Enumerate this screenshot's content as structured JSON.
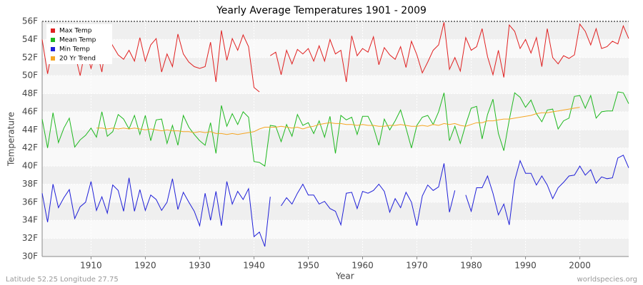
{
  "chart_data": {
    "type": "line",
    "title": "Yearly Average Temperatures 1901 - 2009",
    "x_label": "Year",
    "y_label": "Temperature",
    "footer_left": "Latitude 52.25 Longitude 27.75",
    "footer_right": "worldspecies.org",
    "xlim": [
      1901,
      2009
    ],
    "xticks": [
      1910,
      1920,
      1930,
      1940,
      1950,
      1960,
      1970,
      1980,
      1990,
      2000
    ],
    "ylim": [
      30,
      56
    ],
    "yticks": [
      {
        "value": 30,
        "label": "30F"
      },
      {
        "value": 32,
        "label": "32F"
      },
      {
        "value": 34,
        "label": "34F"
      },
      {
        "value": 36,
        "label": "36F"
      },
      {
        "value": 38,
        "label": "38F"
      },
      {
        "value": 40,
        "label": "40F"
      },
      {
        "value": 42,
        "label": "42F"
      },
      {
        "value": 44,
        "label": "44F"
      },
      {
        "value": 46,
        "label": "46F"
      },
      {
        "value": 48,
        "label": "48F"
      },
      {
        "value": 50,
        "label": "50F"
      },
      {
        "value": 52,
        "label": "52F"
      },
      {
        "value": 54,
        "label": "54F"
      },
      {
        "value": 56,
        "label": "56F"
      }
    ],
    "grid": true,
    "legend": "top-left",
    "x": [
      1901,
      1902,
      1903,
      1904,
      1905,
      1906,
      1907,
      1908,
      1909,
      1910,
      1911,
      1912,
      1913,
      1914,
      1915,
      1916,
      1917,
      1918,
      1919,
      1920,
      1921,
      1922,
      1923,
      1924,
      1925,
      1926,
      1927,
      1928,
      1929,
      1930,
      1931,
      1932,
      1933,
      1934,
      1935,
      1936,
      1937,
      1938,
      1939,
      1940,
      1941,
      1942,
      1943,
      1944,
      1945,
      1946,
      1947,
      1948,
      1949,
      1950,
      1951,
      1952,
      1953,
      1954,
      1955,
      1956,
      1957,
      1958,
      1959,
      1960,
      1961,
      1962,
      1963,
      1964,
      1965,
      1966,
      1967,
      1968,
      1969,
      1970,
      1971,
      1972,
      1973,
      1974,
      1975,
      1976,
      1977,
      1978,
      1979,
      1980,
      1981,
      1982,
      1983,
      1984,
      1985,
      1986,
      1987,
      1988,
      1989,
      1990,
      1991,
      1992,
      1993,
      1994,
      1995,
      1996,
      1997,
      1998,
      1999,
      2000,
      2001,
      2002,
      2003,
      2004,
      2005,
      2006,
      2007,
      2008,
      2009
    ],
    "series": [
      {
        "name": "Max Temp",
        "color": "#e02020",
        "values": [
          54.0,
          50.2,
          53.4,
          52.0,
          51.5,
          53.8,
          52.5,
          50.0,
          53.0,
          50.8,
          52.9,
          50.4,
          54.5,
          53.3,
          52.3,
          51.8,
          52.8,
          51.6,
          54.2,
          51.6,
          53.4,
          54.1,
          50.4,
          52.4,
          51.0,
          54.6,
          52.4,
          51.5,
          51.0,
          50.8,
          51.0,
          53.7,
          49.3,
          55.0,
          51.7,
          54.1,
          52.8,
          54.5,
          53.2,
          48.7,
          48.2,
          null,
          52.2,
          52.6,
          50.1,
          52.8,
          51.3,
          52.9,
          52.4,
          53.0,
          51.6,
          53.3,
          51.6,
          54.0,
          52.4,
          52.8,
          49.3,
          54.4,
          52.2,
          53.0,
          52.6,
          54.3,
          51.2,
          53.1,
          52.3,
          51.8,
          53.2,
          50.9,
          53.8,
          52.3,
          50.3,
          51.5,
          52.8,
          53.4,
          55.9,
          50.7,
          52.0,
          50.5,
          54.2,
          52.8,
          53.2,
          55.2,
          52.1,
          50.1,
          52.8,
          49.8,
          55.6,
          54.9,
          53.0,
          54.0,
          52.5,
          54.2,
          51.0,
          55.2,
          52.0,
          51.3,
          52.2,
          51.9,
          52.3,
          55.7,
          54.9,
          53.4,
          55.2,
          53.0,
          53.2,
          53.8,
          53.5,
          55.5,
          54.1
        ]
      },
      {
        "name": "Mean Temp",
        "color": "#20b820",
        "values": [
          45.2,
          42.0,
          45.9,
          42.6,
          44.2,
          45.3,
          42.1,
          42.9,
          43.4,
          44.2,
          43.2,
          46.0,
          43.3,
          43.8,
          45.7,
          45.2,
          44.1,
          45.6,
          43.5,
          45.6,
          42.8,
          45.1,
          45.2,
          42.5,
          44.5,
          42.3,
          45.6,
          44.3,
          43.5,
          42.8,
          42.3,
          44.8,
          41.4,
          46.7,
          44.4,
          45.8,
          44.6,
          46.0,
          45.4,
          40.5,
          40.4,
          40.0,
          44.5,
          44.4,
          42.7,
          44.6,
          43.3,
          45.7,
          44.5,
          44.8,
          43.6,
          45.0,
          43.2,
          45.5,
          41.4,
          45.6,
          45.1,
          45.4,
          43.5,
          45.5,
          45.5,
          44.3,
          42.3,
          45.2,
          44.0,
          45.0,
          46.2,
          44.2,
          42.0,
          44.5,
          45.4,
          45.6,
          44.6,
          46.0,
          48.1,
          42.8,
          44.4,
          42.5,
          44.6,
          46.4,
          46.6,
          43.0,
          45.7,
          47.4,
          43.6,
          41.7,
          45.1,
          48.1,
          47.6,
          46.5,
          47.3,
          45.8,
          44.9,
          46.2,
          46.3,
          44.1,
          45.0,
          45.3,
          47.7,
          47.8,
          46.4,
          47.8,
          45.3,
          46.0,
          46.1,
          46.1,
          48.2,
          48.1,
          46.9
        ]
      },
      {
        "name": "Min Temp",
        "color": "#2020d8",
        "values": [
          37.0,
          33.8,
          38.0,
          35.4,
          36.5,
          37.4,
          34.2,
          35.5,
          36.0,
          38.3,
          35.1,
          36.6,
          34.8,
          37.9,
          37.3,
          35.0,
          38.7,
          35.0,
          37.4,
          35.1,
          36.8,
          36.3,
          35.1,
          36.0,
          38.6,
          35.2,
          37.1,
          36.0,
          35.0,
          33.4,
          37.0,
          34.0,
          37.2,
          33.4,
          38.3,
          35.8,
          37.2,
          36.3,
          37.5,
          32.2,
          32.7,
          31.1,
          36.6,
          null,
          35.6,
          36.5,
          35.8,
          37.0,
          38.0,
          36.8,
          36.8,
          35.8,
          36.1,
          35.3,
          35.0,
          33.5,
          37.0,
          37.1,
          35.3,
          37.2,
          37.0,
          37.3,
          38.0,
          37.2,
          34.9,
          36.4,
          35.4,
          37.1,
          36.0,
          33.4,
          36.7,
          37.9,
          37.3,
          37.7,
          40.3,
          34.9,
          37.3,
          null,
          36.8,
          35.0,
          37.6,
          37.6,
          38.9,
          37.0,
          34.6,
          35.8,
          33.5,
          38.4,
          40.6,
          39.2,
          39.2,
          37.9,
          38.9,
          37.9,
          36.4,
          37.6,
          38.2,
          38.9,
          39.0,
          40.0,
          39.0,
          39.6,
          38.1,
          38.8,
          38.6,
          38.7,
          40.9,
          41.2,
          39.8
        ]
      },
      {
        "name": "20 Yr Trend",
        "color": "#f5a623",
        "values": [
          null,
          null,
          null,
          null,
          null,
          null,
          null,
          null,
          null,
          null,
          44.2,
          44.2,
          44.1,
          44.2,
          44.1,
          44.2,
          44.1,
          44.2,
          44.1,
          44.0,
          44.1,
          44.0,
          43.9,
          44.0,
          43.9,
          43.9,
          43.8,
          43.8,
          43.7,
          43.8,
          43.7,
          43.8,
          43.6,
          43.6,
          43.5,
          43.6,
          43.5,
          43.6,
          43.7,
          43.8,
          44.1,
          44.3,
          44.3,
          44.3,
          44.4,
          44.3,
          44.2,
          44.3,
          44.1,
          44.3,
          44.4,
          44.6,
          44.7,
          44.8,
          44.7,
          44.7,
          44.6,
          44.6,
          44.5,
          44.6,
          44.5,
          44.5,
          44.4,
          44.4,
          44.5,
          44.5,
          44.6,
          44.5,
          44.4,
          44.4,
          44.5,
          44.4,
          44.6,
          44.5,
          44.7,
          44.6,
          44.7,
          44.5,
          44.4,
          44.6,
          44.8,
          44.8,
          45.0,
          45.0,
          45.1,
          45.2,
          45.2,
          45.3,
          45.4,
          45.5,
          45.6,
          45.8,
          45.9,
          45.9,
          46.0,
          46.1,
          46.2,
          46.3,
          46.4,
          46.5,
          null,
          null,
          null,
          null,
          null,
          null,
          null,
          null,
          null
        ]
      }
    ]
  }
}
